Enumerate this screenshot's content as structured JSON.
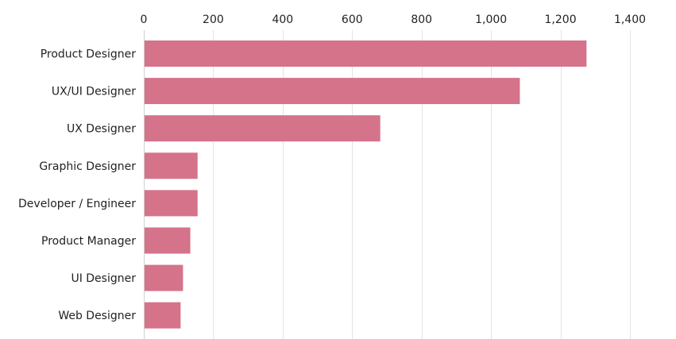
{
  "chart_data": {
    "type": "bar",
    "orientation": "horizontal",
    "title": "",
    "xlabel": "",
    "ylabel": "",
    "categories": [
      "Product Designer",
      "UX/UI Designer",
      "UX Designer",
      "Graphic Designer",
      "Developer / Engineer",
      "Product Manager",
      "UI Designer",
      "Web Designer"
    ],
    "values": [
      1275,
      1083,
      681,
      155,
      155,
      134,
      113,
      106
    ],
    "xlim": [
      0,
      1400
    ],
    "ticks": [
      0,
      200,
      400,
      600,
      800,
      1000,
      1200,
      1400
    ],
    "tick_labels": [
      "0",
      "200",
      "400",
      "600",
      "800",
      "1,000",
      "1,200",
      "1,400"
    ],
    "tick_position": "top",
    "grid": true,
    "bar_color": "#d5738b"
  }
}
